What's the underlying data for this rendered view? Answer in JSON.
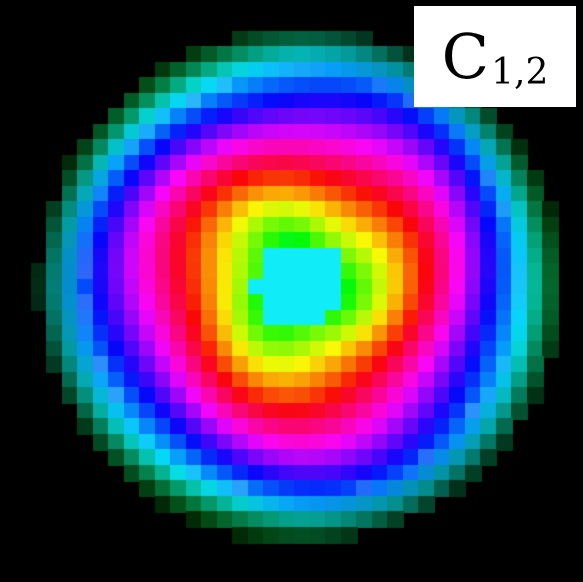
{
  "panel": {
    "label_letter": "C",
    "label_subscript": "1,2"
  },
  "image": {
    "description_kind": "pixelated circular rainbow interference pattern",
    "background": "#000000",
    "center_color": "#1ecbe0",
    "ring_palette": [
      "#1ecbe0",
      "#2a3cff",
      "#8b1cff",
      "#ff1fb3",
      "#ff2a2a",
      "#ffd21c",
      "#2cff2c",
      "#17d1c8",
      "#2a4cff",
      "#b21cff"
    ]
  }
}
